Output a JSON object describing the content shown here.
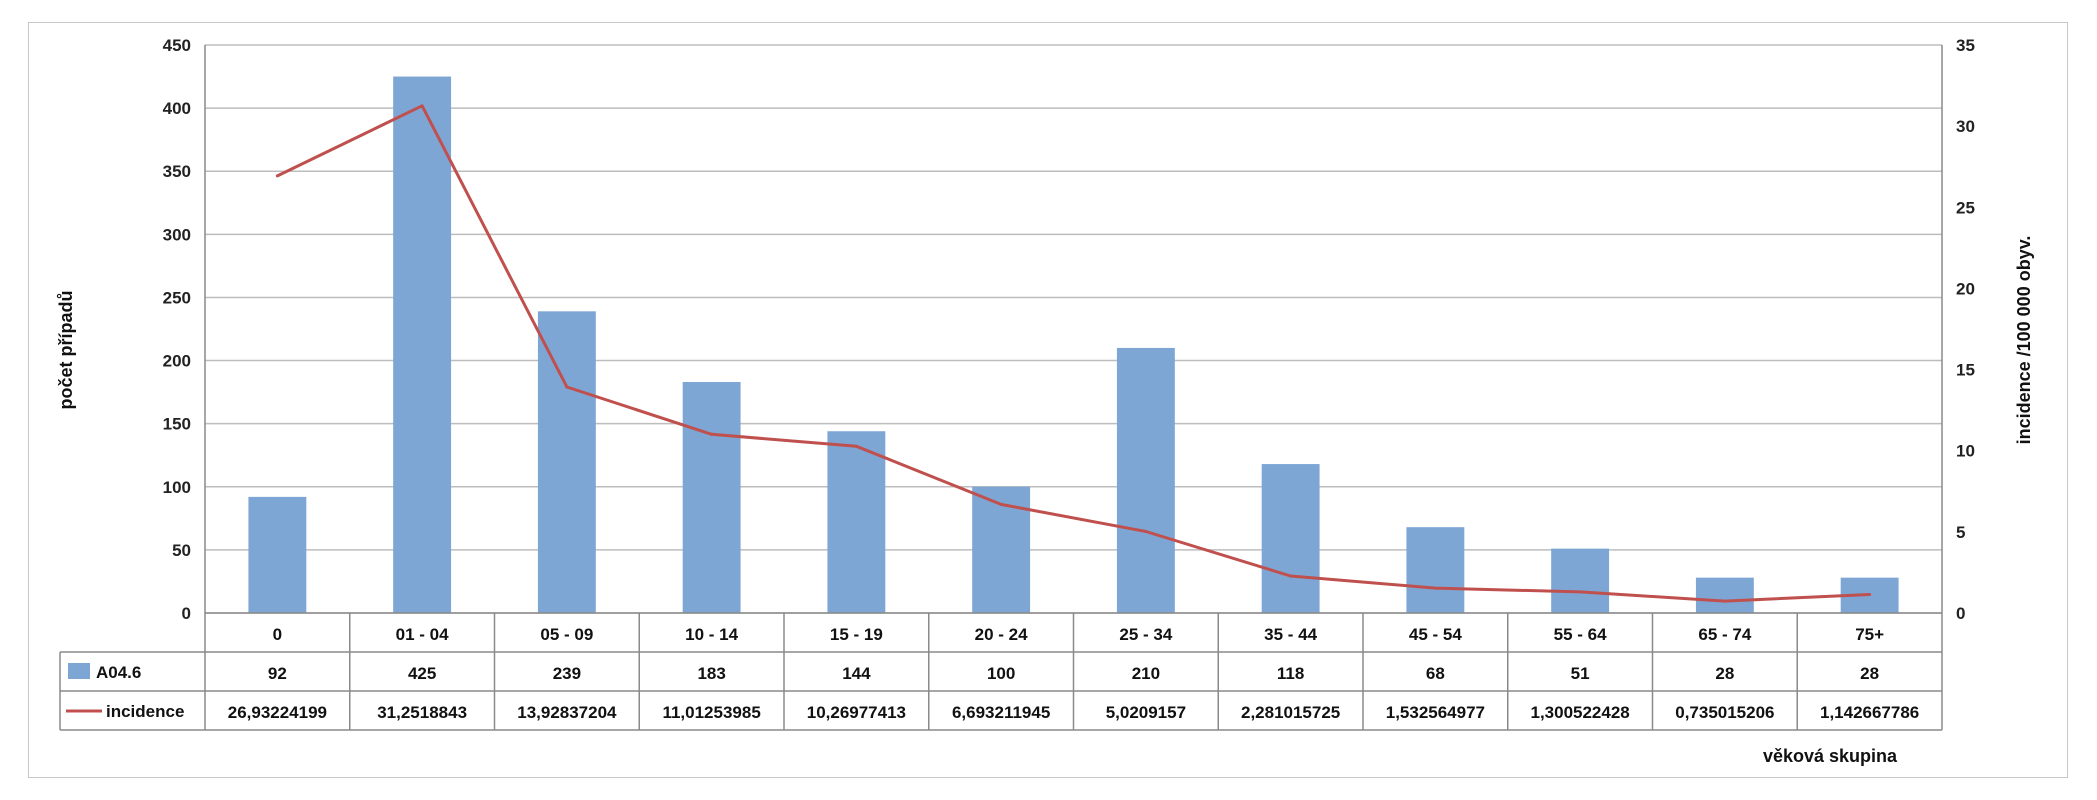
{
  "chart_data": {
    "type": "bar",
    "xlabel": "věková skupina",
    "ylabel": "počet případů",
    "y2label": "incidence /100 000 obyv.",
    "ylim": [
      0,
      450
    ],
    "y2lim": [
      0,
      35
    ],
    "yticks": [
      "0",
      "50",
      "100",
      "150",
      "200",
      "250",
      "300",
      "350",
      "400",
      "450"
    ],
    "y2ticks": [
      "0",
      "5",
      "10",
      "15",
      "20",
      "25",
      "30",
      "35"
    ],
    "grid": true,
    "legend": "data-table",
    "categories": [
      "0",
      "01 - 04",
      "05 - 09",
      "10 - 14",
      "15 - 19",
      "20 - 24",
      "25 - 34",
      "35 - 44",
      "45 - 54",
      "55 - 64",
      "65 - 74",
      "75+"
    ],
    "series": [
      {
        "name": "A04.6",
        "kind": "bar",
        "axis": "left",
        "color": "#7ea6d4",
        "values": [
          92,
          425,
          239,
          183,
          144,
          100,
          210,
          118,
          68,
          51,
          28,
          28
        ],
        "labels": [
          "92",
          "425",
          "239",
          "183",
          "144",
          "100",
          "210",
          "118",
          "68",
          "51",
          "28",
          "28"
        ]
      },
      {
        "name": "incidence",
        "kind": "line",
        "axis": "right",
        "color": "#c0504d",
        "values": [
          26.93224199,
          31.2518843,
          13.92837204,
          11.01253985,
          10.26977413,
          6.693211945,
          5.0209157,
          2.281015725,
          1.532564977,
          1.300522428,
          0.735015206,
          1.142667786
        ],
        "labels": [
          "26,93224199",
          "31,2518843",
          "13,92837204",
          "11,01253985",
          "10,26977413",
          "6,693211945",
          "5,0209157",
          "2,281015725",
          "1,532564977",
          "1,300522428",
          "0,735015206",
          "1,142667786"
        ]
      }
    ]
  }
}
